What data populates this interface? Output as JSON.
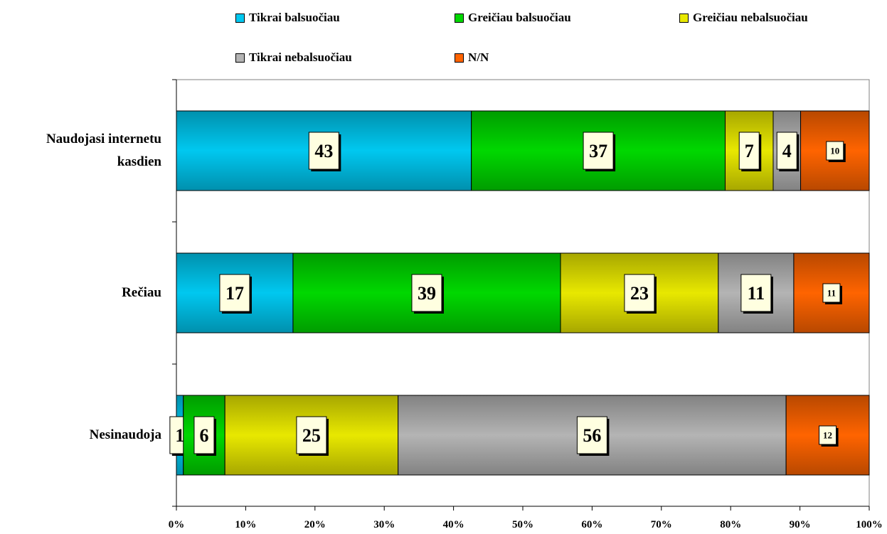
{
  "legend": {
    "items": [
      {
        "label": "Tikrai balsuočiau",
        "color": "#00c8f0"
      },
      {
        "label": "Greičiau balsuočiau",
        "color": "#00d800"
      },
      {
        "label": "Greičiau nebalsuočiau",
        "color": "#e8e800"
      },
      {
        "label": "Tikrai nebalsuočiau",
        "color": "#b4b4b4"
      },
      {
        "label": "N/N",
        "color": "#ff6400"
      }
    ]
  },
  "chart_data": {
    "type": "bar",
    "orientation": "horizontal",
    "stacked": "percent",
    "categories": [
      "Naudojasi internetu kasdien",
      "Rečiau",
      "Nesinaudoja"
    ],
    "category_label_lines": [
      [
        "Naudojasi internetu",
        "kasdien"
      ],
      [
        "Rečiau"
      ],
      [
        "Nesinaudoja"
      ]
    ],
    "series": [
      {
        "name": "Tikrai balsuočiau",
        "values": [
          43,
          17,
          1
        ],
        "color": "#00c8f0"
      },
      {
        "name": "Greičiau balsuočiau",
        "values": [
          37,
          39,
          6
        ],
        "color": "#00d800"
      },
      {
        "name": "Greičiau nebalsuočiau",
        "values": [
          7,
          23,
          25
        ],
        "color": "#e8e800"
      },
      {
        "name": "Tikrai nebalsuočiau",
        "values": [
          4,
          11,
          56
        ],
        "color": "#b4b4b4"
      },
      {
        "name": "N/N",
        "values": [
          10,
          11,
          12
        ],
        "color": "#ff6400"
      }
    ],
    "xlim": [
      0,
      100
    ],
    "x_ticks": [
      "0%",
      "10%",
      "20%",
      "30%",
      "40%",
      "50%",
      "60%",
      "70%",
      "80%",
      "90%",
      "100%"
    ],
    "legend_position": "top",
    "grid": false
  }
}
